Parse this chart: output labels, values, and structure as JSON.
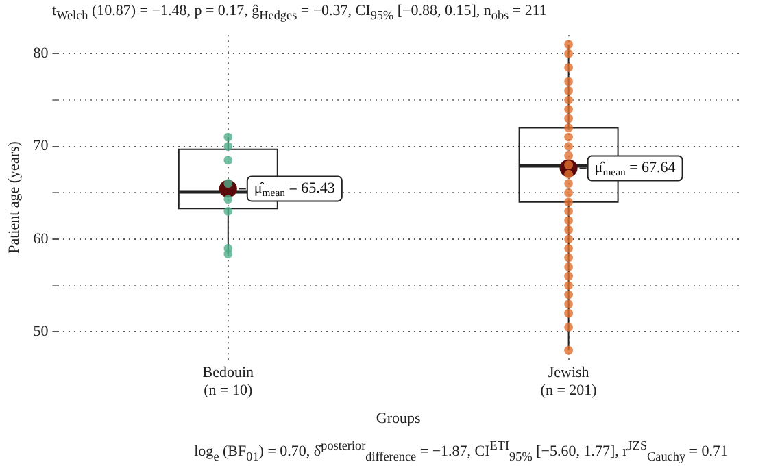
{
  "chart_data": {
    "type": "box",
    "title": "t$_{Welch}$ (10.87) = −1.48, p = 0.17, ĝ$_{Hedges}$ = −0.37, CI$_{95%}$ [−0.88, 0.15], n$_{obs}$ = 211",
    "xlabel": "Groups",
    "ylabel": "Patient age (years)",
    "categories": [
      "Bedouin\n(n = 10)",
      "Jewish\n(n = 201)"
    ],
    "ylim": [
      47,
      82
    ],
    "yticks": [
      50,
      {
        "value": 55,
        "label": null
      },
      60,
      {
        "value": 65,
        "label": null
      },
      70,
      {
        "value": 75,
        "label": null
      },
      80
    ],
    "grid": true,
    "legend": false,
    "boxes": [
      {
        "low": 58.4,
        "q1": 63.3,
        "median": 65.1,
        "q3": 69.7,
        "high": 71
      },
      {
        "low": 48,
        "q1": 64,
        "median": 67.9,
        "q3": 72,
        "high": 81
      }
    ],
    "series": [
      {
        "type": "scatter",
        "color": "#4fae8a",
        "x": [
          "Bedouin\n(n = 10)",
          "Bedouin\n(n = 10)",
          "Bedouin\n(n = 10)",
          "Bedouin\n(n = 10)",
          "Bedouin\n(n = 10)",
          "Bedouin\n(n = 10)",
          "Bedouin\n(n = 10)",
          "Bedouin\n(n = 10)"
        ],
        "values": [
          71,
          70,
          68.5,
          66,
          64.3,
          63,
          59,
          58.4
        ]
      },
      {
        "type": "scatter",
        "color": "#e07030",
        "x": [
          "Jewish\n(n = 201)",
          "Jewish\n(n = 201)",
          "Jewish\n(n = 201)",
          "Jewish\n(n = 201)",
          "Jewish\n(n = 201)",
          "Jewish\n(n = 201)",
          "Jewish\n(n = 201)",
          "Jewish\n(n = 201)",
          "Jewish\n(n = 201)",
          "Jewish\n(n = 201)",
          "Jewish\n(n = 201)",
          "Jewish\n(n = 201)",
          "Jewish\n(n = 201)",
          "Jewish\n(n = 201)",
          "Jewish\n(n = 201)",
          "Jewish\n(n = 201)",
          "Jewish\n(n = 201)",
          "Jewish\n(n = 201)",
          "Jewish\n(n = 201)",
          "Jewish\n(n = 201)",
          "Jewish\n(n = 201)",
          "Jewish\n(n = 201)",
          "Jewish\n(n = 201)",
          "Jewish\n(n = 201)",
          "Jewish\n(n = 201)",
          "Jewish\n(n = 201)",
          "Jewish\n(n = 201)",
          "Jewish\n(n = 201)",
          "Jewish\n(n = 201)",
          "Jewish\n(n = 201)",
          "Jewish\n(n = 201)"
        ],
        "values": [
          81,
          80,
          78.5,
          77,
          76,
          75,
          74,
          73,
          72,
          71,
          70,
          69,
          68,
          67,
          66,
          65,
          64,
          63,
          62,
          61,
          60,
          59,
          58,
          57,
          56,
          55,
          54,
          53,
          52,
          50.5,
          48
        ]
      },
      {
        "type": "scatter",
        "color": "#5a0a0a",
        "x": [
          "Bedouin\n(n = 10)",
          "Jewish\n(n = 201)"
        ],
        "values": [
          65.43,
          67.64
        ],
        "value_labels": [
          "μ̂$_{mean}$ = 65.43",
          "μ̂$_{mean}$ = 67.64"
        ]
      }
    ],
    "annotations": [
      "log$_{e}$ (BF$_{01}$) = 0.70, δ̂$^{posterior}$$_{difference}$ = −1.87, CI$^{ETI}$$_{95%}$ [−5.60, 1.77], r$^{JZS}$$_{Cauchy}$ = 0.71"
    ]
  }
}
